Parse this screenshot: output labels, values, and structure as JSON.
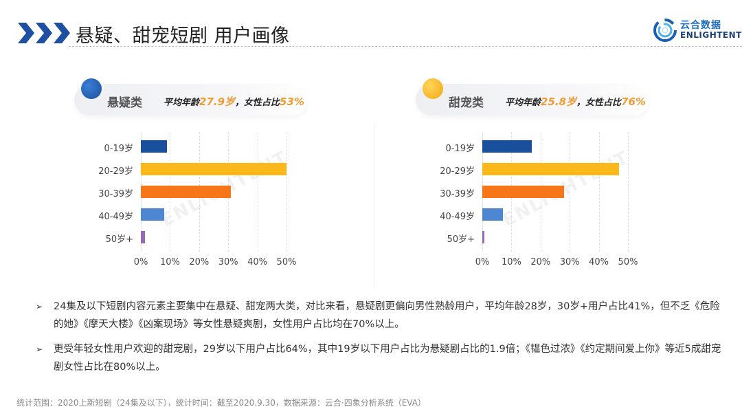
{
  "header": {
    "title": "悬疑、甜宠短剧 用户画像",
    "logo_cn": "云合数据",
    "logo_en": "ENLIGHTENT",
    "chevron_color": "#1d4fa3"
  },
  "panels": [
    {
      "category": "悬疑类",
      "dot_color": "#1f5fb8",
      "stats_prefix": "平均年龄",
      "avg_age": "27.9岁",
      "stats_mid": "，女性占比",
      "female_ratio": "53%"
    },
    {
      "category": "甜宠类",
      "dot_color": "#f7b924",
      "stats_prefix": "平均年龄",
      "avg_age": "25.8岁",
      "stats_mid": "，女性占比",
      "female_ratio": "76%"
    }
  ],
  "chart_data": [
    {
      "type": "bar",
      "orientation": "horizontal",
      "title": "悬疑类",
      "categories": [
        "0-19岁",
        "20-29岁",
        "30-39岁",
        "40-49岁",
        "50岁+"
      ],
      "values": [
        9,
        50,
        31,
        8,
        1.5
      ],
      "colors": [
        "#1a4f9c",
        "#fbb81b",
        "#f7761a",
        "#4d87d1",
        "#9a68b8"
      ],
      "xlabel": "",
      "ylabel": "",
      "xlim": [
        0,
        50
      ],
      "xticks": [
        "0%",
        "10%",
        "20%",
        "30%",
        "40%",
        "50%"
      ],
      "grid": true,
      "unit": "%"
    },
    {
      "type": "bar",
      "orientation": "horizontal",
      "title": "甜宠类",
      "categories": [
        "0-19岁",
        "20-29岁",
        "30-39岁",
        "40-49岁",
        "50岁+"
      ],
      "values": [
        17,
        47,
        28,
        7,
        0.8
      ],
      "colors": [
        "#1a4f9c",
        "#fbb81b",
        "#f7761a",
        "#4d87d1",
        "#9a68b8"
      ],
      "xlabel": "",
      "ylabel": "",
      "xlim": [
        0,
        50
      ],
      "xticks": [
        "0%",
        "10%",
        "20%",
        "30%",
        "40%",
        "50%"
      ],
      "grid": true,
      "unit": "%"
    }
  ],
  "bullets": [
    {
      "marker": "➢",
      "text": "24集及以下短剧内容元素主要集中在悬疑、甜宠两大类，对比来看，悬疑剧更偏向男性熟龄用户，平均年龄28岁，30岁+用户占比41%，但不乏《危险的她》《摩天大楼》《凶案现场》等女性悬疑爽剧，女性用户占比均在70%以上。"
    },
    {
      "marker": "➢",
      "text": "更受年轻女性用户欢迎的甜宠剧，29岁以下用户占比64%，其中19岁以下用户占比为悬疑剧占比的1.9倍；《韫色过浓》《约定期间爱上你》等近5成甜宠剧女性占比在80%以上。"
    }
  ],
  "footer": "统计范围：2020上新短剧（24集及以下），统计时间：截至2020.9.30，数据来源：云合·四象分析系统（EVA）",
  "watermark": "ENLIGHTENT"
}
